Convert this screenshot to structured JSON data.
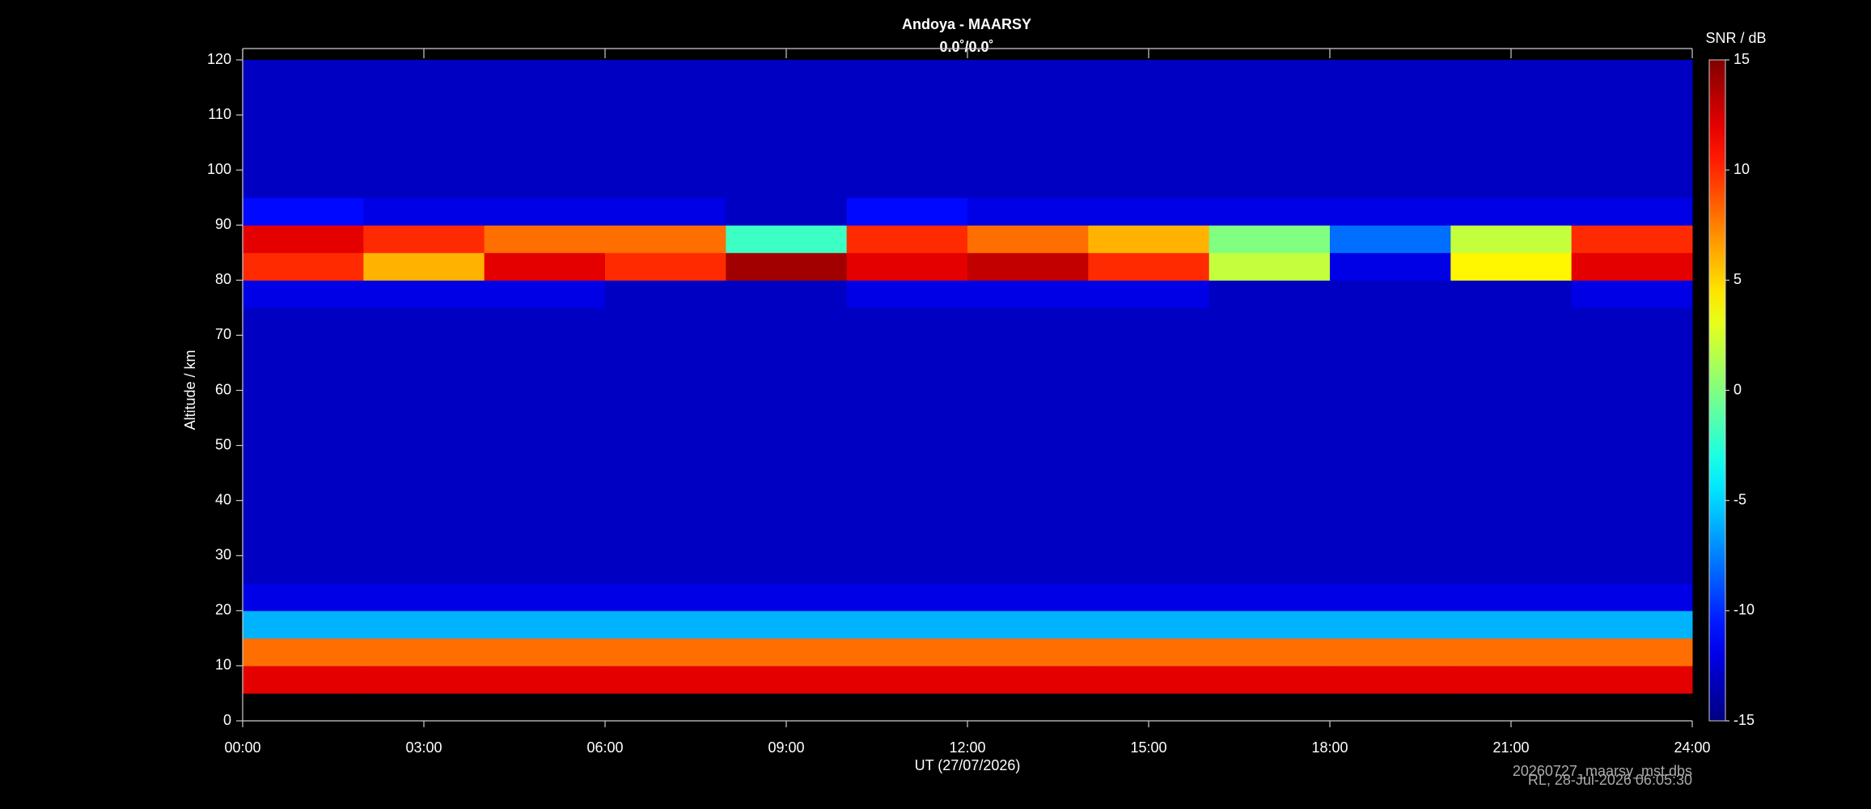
{
  "chart_data": {
    "type": "heatmap",
    "title": "Andoya - MAARSY",
    "subtitle": "0.0˚/0.0˚",
    "x_label": "UT (27/07/2026)",
    "y_label": "Altitude / km",
    "colorbar_label": "SNR / dB",
    "colormap": "jet",
    "footnotes": [
      "20260727_maarsy_mst.dbs",
      "RL, 28-Jul-2026 06:05:30"
    ],
    "xlim": [
      0,
      24
    ],
    "xticks": [
      {
        "value": 0,
        "label": "00:00"
      },
      {
        "value": 3,
        "label": "03:00"
      },
      {
        "value": 6,
        "label": "06:00"
      },
      {
        "value": 9,
        "label": "09:00"
      },
      {
        "value": 12,
        "label": "12:00"
      },
      {
        "value": 15,
        "label": "15:00"
      },
      {
        "value": 18,
        "label": "18:00"
      },
      {
        "value": 21,
        "label": "21:00"
      },
      {
        "value": 24,
        "label": "24:00"
      }
    ],
    "ylim": [
      0,
      120
    ],
    "yticks": [
      0,
      10,
      20,
      30,
      40,
      50,
      60,
      70,
      80,
      90,
      100,
      110,
      120
    ],
    "clim": [
      -15,
      15
    ],
    "cticks": [
      -15,
      -10,
      -5,
      0,
      5,
      10,
      15
    ],
    "x_bins": [
      0,
      2,
      4,
      6,
      8,
      10,
      12,
      14,
      16,
      18,
      20,
      22,
      24
    ],
    "y_bins": [
      0,
      5,
      10,
      15,
      20,
      25,
      30,
      35,
      40,
      45,
      50,
      55,
      60,
      65,
      70,
      75,
      80,
      85,
      90,
      95,
      100,
      105,
      110,
      115,
      120
    ],
    "z": [
      [
        null,
        null,
        null,
        null,
        null,
        null,
        null,
        null,
        null,
        null,
        null,
        null
      ],
      [
        12,
        12,
        12,
        12,
        12,
        12,
        12,
        12,
        12,
        12,
        12,
        12
      ],
      [
        8,
        8,
        8,
        8,
        8,
        8,
        8,
        8,
        8,
        8,
        8,
        8
      ],
      [
        -6,
        -6,
        -6,
        -6,
        -6,
        -6,
        -6,
        -6,
        -6,
        -6,
        -6,
        -6
      ],
      [
        -12,
        -12,
        -12,
        -12,
        -12,
        -12,
        -12,
        -12,
        -12,
        -12,
        -12,
        -12
      ],
      [
        -13,
        -13,
        -13,
        -13,
        -13,
        -13,
        -13,
        -13,
        -13,
        -13,
        -13,
        -13
      ],
      [
        -13,
        -13,
        -13,
        -13,
        -13,
        -13,
        -13,
        -13,
        -13,
        -13,
        -13,
        -13
      ],
      [
        -13,
        -13,
        -13,
        -13,
        -13,
        -13,
        -13,
        -13,
        -13,
        -13,
        -13,
        -13
      ],
      [
        -13,
        -13,
        -13,
        -13,
        -13,
        -13,
        -13,
        -13,
        -13,
        -13,
        -13,
        -13
      ],
      [
        -13,
        -13,
        -13,
        -13,
        -13,
        -13,
        -13,
        -13,
        -13,
        -13,
        -13,
        -13
      ],
      [
        -13,
        -13,
        -13,
        -13,
        -13,
        -13,
        -13,
        -13,
        -13,
        -13,
        -13,
        -13
      ],
      [
        -13,
        -13,
        -13,
        -13,
        -13,
        -13,
        -13,
        -13,
        -13,
        -13,
        -13,
        -13
      ],
      [
        -13,
        -13,
        -13,
        -13,
        -13,
        -13,
        -13,
        -13,
        -13,
        -13,
        -13,
        -13
      ],
      [
        -13,
        -13,
        -13,
        -13,
        -13,
        -13,
        -13,
        -13,
        -13,
        -13,
        -13,
        -13
      ],
      [
        -13,
        -13,
        -13,
        -13,
        -13,
        -13,
        -13,
        -13,
        -13,
        -13,
        -13,
        -13
      ],
      [
        -12,
        -12,
        -12,
        -13,
        -13,
        -12,
        -12,
        -12,
        -13,
        -13,
        -13,
        -12
      ],
      [
        10,
        6,
        12,
        10,
        14,
        12,
        13,
        10,
        2,
        -12,
        4,
        12
      ],
      [
        12,
        10,
        8,
        8,
        -2,
        10,
        8,
        6,
        0,
        -8,
        2,
        10
      ],
      [
        -11,
        -12,
        -12,
        -12,
        -13,
        -11,
        -12,
        -12,
        -12,
        -12,
        -12,
        -12
      ],
      [
        -13,
        -13,
        -13,
        -13,
        -13,
        -13,
        -13,
        -13,
        -13,
        -13,
        -13,
        -13
      ],
      [
        -13,
        -13,
        -13,
        -13,
        -13,
        -13,
        -13,
        -13,
        -13,
        -13,
        -13,
        -13
      ],
      [
        -13,
        -13,
        -13,
        -13,
        -13,
        -13,
        -13,
        -13,
        -13,
        -13,
        -13,
        -13
      ],
      [
        -13,
        -13,
        -13,
        -13,
        -13,
        -13,
        -13,
        -13,
        -13,
        -13,
        -13,
        -13
      ],
      [
        -13,
        -13,
        -13,
        -13,
        -13,
        -13,
        -13,
        -13,
        -13,
        -13,
        -13,
        -13
      ]
    ]
  }
}
